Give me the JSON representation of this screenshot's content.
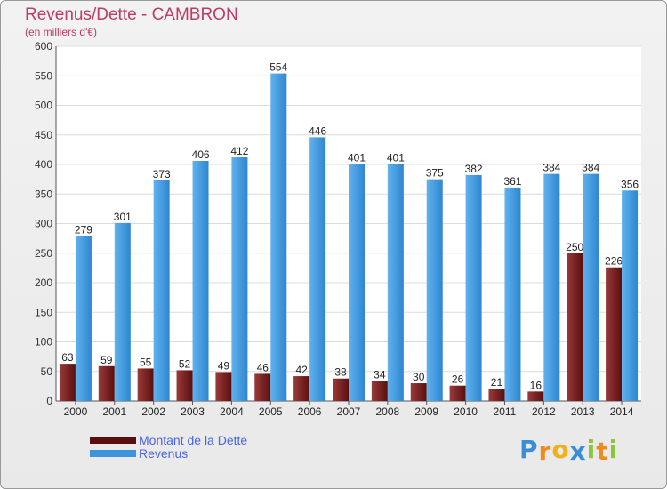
{
  "header": {
    "title": "Revenus/Dette - CAMBRON",
    "subtitle": "(en milliers d'€)"
  },
  "chart_data": {
    "type": "bar",
    "categories": [
      "2000",
      "2001",
      "2002",
      "2003",
      "2004",
      "2005",
      "2006",
      "2007",
      "2008",
      "2009",
      "2010",
      "2011",
      "2012",
      "2013",
      "2014"
    ],
    "series": [
      {
        "name": "Montant de la Dette",
        "color": "#7b1e1e",
        "values": [
          63,
          59,
          55,
          52,
          49,
          46,
          42,
          38,
          34,
          30,
          26,
          21,
          16,
          250,
          226
        ]
      },
      {
        "name": "Revenus",
        "color": "#4a9fe0",
        "values": [
          279,
          301,
          373,
          406,
          412,
          554,
          446,
          401,
          401,
          375,
          382,
          361,
          384,
          384,
          356
        ]
      }
    ],
    "ylim": [
      0,
      600
    ],
    "yticks": [
      0,
      50,
      100,
      150,
      200,
      250,
      300,
      350,
      400,
      450,
      500,
      550,
      600
    ],
    "grid": true,
    "legend": "bottom-left"
  },
  "legend": {
    "items": [
      {
        "label": "Montant de la Dette",
        "color": "#5a0e0e"
      },
      {
        "label": "Revenus",
        "color": "#3c94dc"
      }
    ]
  },
  "logo": {
    "text": "Proxiti",
    "letters": [
      "P",
      "r",
      "o",
      "x",
      "i",
      "t",
      "i"
    ],
    "colors": [
      "#3a8ed8",
      "#f08a1c",
      "#f0b21c",
      "#3a8ed8",
      "#8cc43c",
      "#f08a1c",
      "#8cc43c"
    ]
  }
}
